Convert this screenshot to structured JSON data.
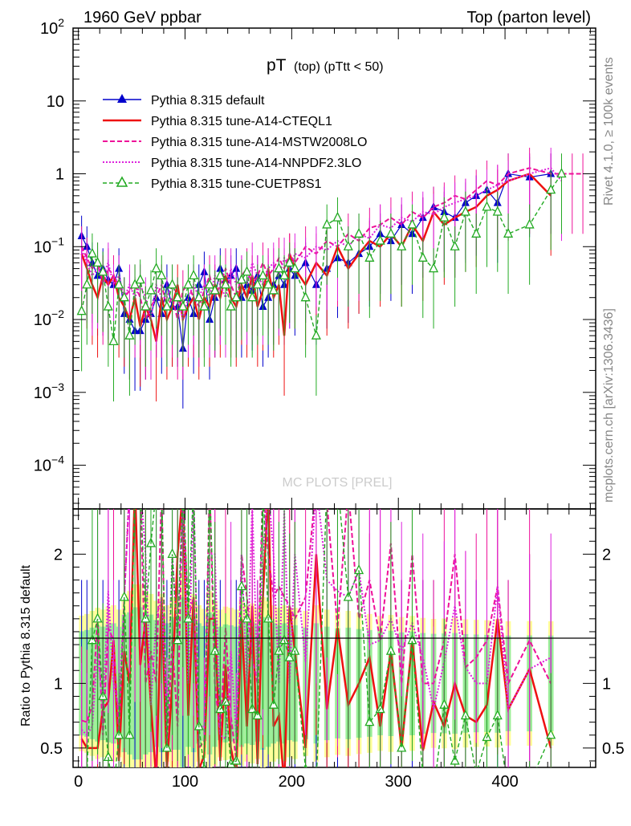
{
  "header": {
    "left": "1960 GeV ppbar",
    "right": "Top (parton level)",
    "title": "pT",
    "title_sub": "(top) (pTtt < 50)"
  },
  "side_labels": {
    "rivet": "Rivet 4.1.0, ≥ 100k events",
    "mcplots": "mcplots.cern.ch [arXiv:1306.3436]"
  },
  "ratio_ylabel": "Ratio to Pythia 8.315 default",
  "watermark": "MC PLOTS [PREL]",
  "colors": {
    "blue": "#0000cc",
    "red": "#ee1111",
    "magenta": "#ee1199",
    "pink": "#dd22dd",
    "green": "#22aa22",
    "band_green": "#99ee99",
    "band_yellow": "#ffff99"
  },
  "chart_data": {
    "type": "line",
    "xlabel": "",
    "xlim": [
      -5,
      485
    ],
    "main_ylim_log10": [
      -4.6,
      2
    ],
    "ratio_ylim": [
      0.35,
      2.35
    ],
    "x_ticks": [
      0,
      100,
      200,
      300,
      400
    ],
    "x_tick_labels": [
      "0",
      "100",
      "200",
      "300",
      "400"
    ],
    "main_y_ticks": [
      {
        "label": "10",
        "exp": "2",
        "value": 100
      },
      {
        "label": "10",
        "exp": "",
        "value": 10
      },
      {
        "label": "1",
        "exp": "",
        "value": 1
      },
      {
        "label": "10",
        "exp": "−1",
        "value": 0.1
      },
      {
        "label": "10",
        "exp": "−2",
        "value": 0.01
      },
      {
        "label": "10",
        "exp": "−3",
        "value": 0.001
      },
      {
        "label": "10",
        "exp": "−4",
        "value": 0.0001
      }
    ],
    "ratio_y_ticks": [
      {
        "label": "2",
        "value": 2
      },
      {
        "label": "1",
        "value": 1
      },
      {
        "label": "0.5",
        "value": 0.5
      }
    ],
    "legend": [
      {
        "name": "Pythia 8.315 default",
        "style": "blue-solid-triangle"
      },
      {
        "name": "Pythia 8.315 tune-A14-CTEQL1",
        "style": "red-solid"
      },
      {
        "name": "Pythia 8.315 tune-A14-MSTW2008LO",
        "style": "magenta-dashed"
      },
      {
        "name": "Pythia 8.315 tune-A14-NNPDF2.3LO",
        "style": "pink-dotted"
      },
      {
        "name": "Pythia 8.315 tune-CUETP8S1",
        "style": "green-dashed-open-triangle"
      }
    ],
    "series": [
      {
        "name": "Pythia 8.315 default",
        "x": [
          3,
          8,
          13,
          18,
          23,
          28,
          33,
          38,
          43,
          48,
          53,
          58,
          63,
          68,
          73,
          78,
          83,
          88,
          93,
          98,
          103,
          108,
          113,
          118,
          123,
          128,
          133,
          138,
          143,
          148,
          153,
          158,
          163,
          168,
          173,
          178,
          183,
          188,
          193,
          198,
          203,
          213,
          223,
          233,
          243,
          253,
          263,
          273,
          283,
          293,
          303,
          313,
          323,
          333,
          343,
          353,
          363,
          373,
          383,
          393,
          403,
          423,
          443
        ],
        "values": [
          0.14,
          0.1,
          0.06,
          0.04,
          0.05,
          0.035,
          0.03,
          0.05,
          0.012,
          0.01,
          0.007,
          0.007,
          0.01,
          0.012,
          0.02,
          0.012,
          0.03,
          0.015,
          0.015,
          0.004,
          0.02,
          0.012,
          0.03,
          0.045,
          0.01,
          0.02,
          0.05,
          0.035,
          0.04,
          0.05,
          0.02,
          0.03,
          0.025,
          0.04,
          0.015,
          0.02,
          0.03,
          0.04,
          0.03,
          0.05,
          0.04,
          0.06,
          0.03,
          0.05,
          0.07,
          0.06,
          0.08,
          0.1,
          0.15,
          0.12,
          0.2,
          0.15,
          0.25,
          0.35,
          0.3,
          0.25,
          0.4,
          0.5,
          0.6,
          0.4,
          1.0,
          0.9,
          1.0
        ]
      },
      {
        "name": "Pythia 8.315 tune-A14-CTEQL1",
        "x": [
          3,
          8,
          13,
          18,
          23,
          28,
          33,
          38,
          43,
          48,
          53,
          58,
          63,
          68,
          73,
          78,
          83,
          88,
          93,
          98,
          103,
          108,
          113,
          118,
          123,
          128,
          133,
          138,
          143,
          148,
          153,
          158,
          163,
          168,
          173,
          178,
          183,
          188,
          193,
          198,
          203,
          213,
          223,
          233,
          243,
          253,
          263,
          273,
          283,
          293,
          303,
          313,
          323,
          333,
          343,
          353,
          363,
          373,
          383,
          393,
          403,
          423,
          443
        ],
        "values": [
          0.08,
          0.05,
          0.03,
          0.02,
          0.04,
          0.03,
          0.04,
          0.02,
          0.015,
          0.01,
          0.02,
          0.008,
          0.015,
          0.01,
          0.005,
          0.02,
          0.01,
          0.015,
          0.03,
          0.01,
          0.015,
          0.02,
          0.01,
          0.02,
          0.015,
          0.03,
          0.02,
          0.04,
          0.02,
          0.015,
          0.03,
          0.02,
          0.04,
          0.015,
          0.025,
          0.05,
          0.02,
          0.03,
          0.006,
          0.08,
          0.05,
          0.03,
          0.06,
          0.04,
          0.1,
          0.05,
          0.08,
          0.12,
          0.1,
          0.15,
          0.1,
          0.2,
          0.12,
          0.3,
          0.2,
          0.25,
          0.3,
          0.35,
          0.5,
          0.6,
          0.8,
          1.0,
          0.5
        ]
      },
      {
        "name": "Pythia 8.315 tune-A14-MSTW2008LO",
        "x": [
          3,
          8,
          13,
          18,
          23,
          28,
          33,
          38,
          43,
          48,
          53,
          58,
          63,
          68,
          73,
          78,
          83,
          88,
          93,
          98,
          103,
          108,
          113,
          118,
          123,
          128,
          133,
          138,
          143,
          148,
          153,
          158,
          163,
          168,
          173,
          178,
          183,
          188,
          193,
          198,
          203,
          213,
          223,
          233,
          243,
          253,
          263,
          273,
          283,
          293,
          303,
          313,
          323,
          333,
          343,
          353,
          363,
          373,
          383,
          393,
          403,
          423,
          443,
          463,
          473
        ],
        "values": [
          0.1,
          0.07,
          0.05,
          0.06,
          0.03,
          0.05,
          0.04,
          0.03,
          0.02,
          0.025,
          0.03,
          0.02,
          0.01,
          0.015,
          0.02,
          0.03,
          0.015,
          0.02,
          0.01,
          0.025,
          0.03,
          0.02,
          0.015,
          0.025,
          0.04,
          0.02,
          0.03,
          0.05,
          0.03,
          0.02,
          0.04,
          0.05,
          0.03,
          0.04,
          0.06,
          0.04,
          0.05,
          0.07,
          0.05,
          0.08,
          0.06,
          0.1,
          0.08,
          0.12,
          0.1,
          0.15,
          0.12,
          0.18,
          0.2,
          0.25,
          0.2,
          0.3,
          0.25,
          0.35,
          0.4,
          0.5,
          0.45,
          0.6,
          0.8,
          0.7,
          1.0,
          1.2,
          1.0,
          1.0,
          1.0
        ]
      },
      {
        "name": "Pythia 8.315 tune-A14-NNPDF2.3LO",
        "x": [
          3,
          8,
          13,
          18,
          23,
          28,
          33,
          38,
          43,
          48,
          53,
          58,
          63,
          68,
          73,
          78,
          83,
          88,
          93,
          98,
          103,
          108,
          113,
          118,
          123,
          128,
          133,
          138,
          143,
          148,
          153,
          158,
          163,
          168,
          173,
          178,
          183,
          188,
          193,
          198,
          203,
          213,
          223,
          233,
          243,
          253,
          263,
          273,
          283,
          293,
          303,
          313,
          323,
          333,
          343,
          353,
          363,
          373,
          383,
          393,
          403,
          423,
          443,
          453
        ],
        "values": [
          0.09,
          0.06,
          0.04,
          0.05,
          0.04,
          0.06,
          0.03,
          0.04,
          0.02,
          0.03,
          0.02,
          0.03,
          0.02,
          0.01,
          0.03,
          0.02,
          0.02,
          0.03,
          0.02,
          0.01,
          0.02,
          0.03,
          0.02,
          0.03,
          0.02,
          0.04,
          0.03,
          0.02,
          0.05,
          0.03,
          0.04,
          0.03,
          0.06,
          0.04,
          0.03,
          0.05,
          0.06,
          0.04,
          0.07,
          0.05,
          0.08,
          0.07,
          0.1,
          0.09,
          0.12,
          0.1,
          0.15,
          0.13,
          0.2,
          0.18,
          0.25,
          0.22,
          0.3,
          0.28,
          0.35,
          0.4,
          0.45,
          0.5,
          0.6,
          0.7,
          0.8,
          1.0,
          1.2,
          0.8
        ]
      },
      {
        "name": "Pythia 8.315 tune-CUETP8S1",
        "x": [
          3,
          8,
          13,
          18,
          23,
          28,
          33,
          38,
          43,
          48,
          53,
          58,
          63,
          68,
          73,
          78,
          83,
          88,
          93,
          98,
          103,
          108,
          113,
          118,
          123,
          128,
          133,
          138,
          143,
          148,
          153,
          158,
          163,
          168,
          173,
          178,
          183,
          188,
          193,
          198,
          203,
          213,
          223,
          233,
          243,
          253,
          263,
          273,
          283,
          293,
          303,
          313,
          323,
          333,
          343,
          353,
          363,
          373,
          383,
          393,
          403,
          423,
          443,
          453
        ],
        "values": [
          0.013,
          0.03,
          0.08,
          0.06,
          0.045,
          0.015,
          0.005,
          0.03,
          0.02,
          0.006,
          0.03,
          0.035,
          0.015,
          0.025,
          0.05,
          0.04,
          0.015,
          0.03,
          0.02,
          0.015,
          0.03,
          0.04,
          0.02,
          0.015,
          0.03,
          0.025,
          0.04,
          0.03,
          0.015,
          0.02,
          0.035,
          0.045,
          0.02,
          0.03,
          0.04,
          0.03,
          0.025,
          0.05,
          0.04,
          0.06,
          0.05,
          0.02,
          0.006,
          0.2,
          0.25,
          0.1,
          0.15,
          0.07,
          0.12,
          0.15,
          0.1,
          0.2,
          0.07,
          0.05,
          0.25,
          0.1,
          0.3,
          0.15,
          0.35,
          0.3,
          0.15,
          0.2,
          0.6,
          1.0
        ]
      }
    ]
  }
}
